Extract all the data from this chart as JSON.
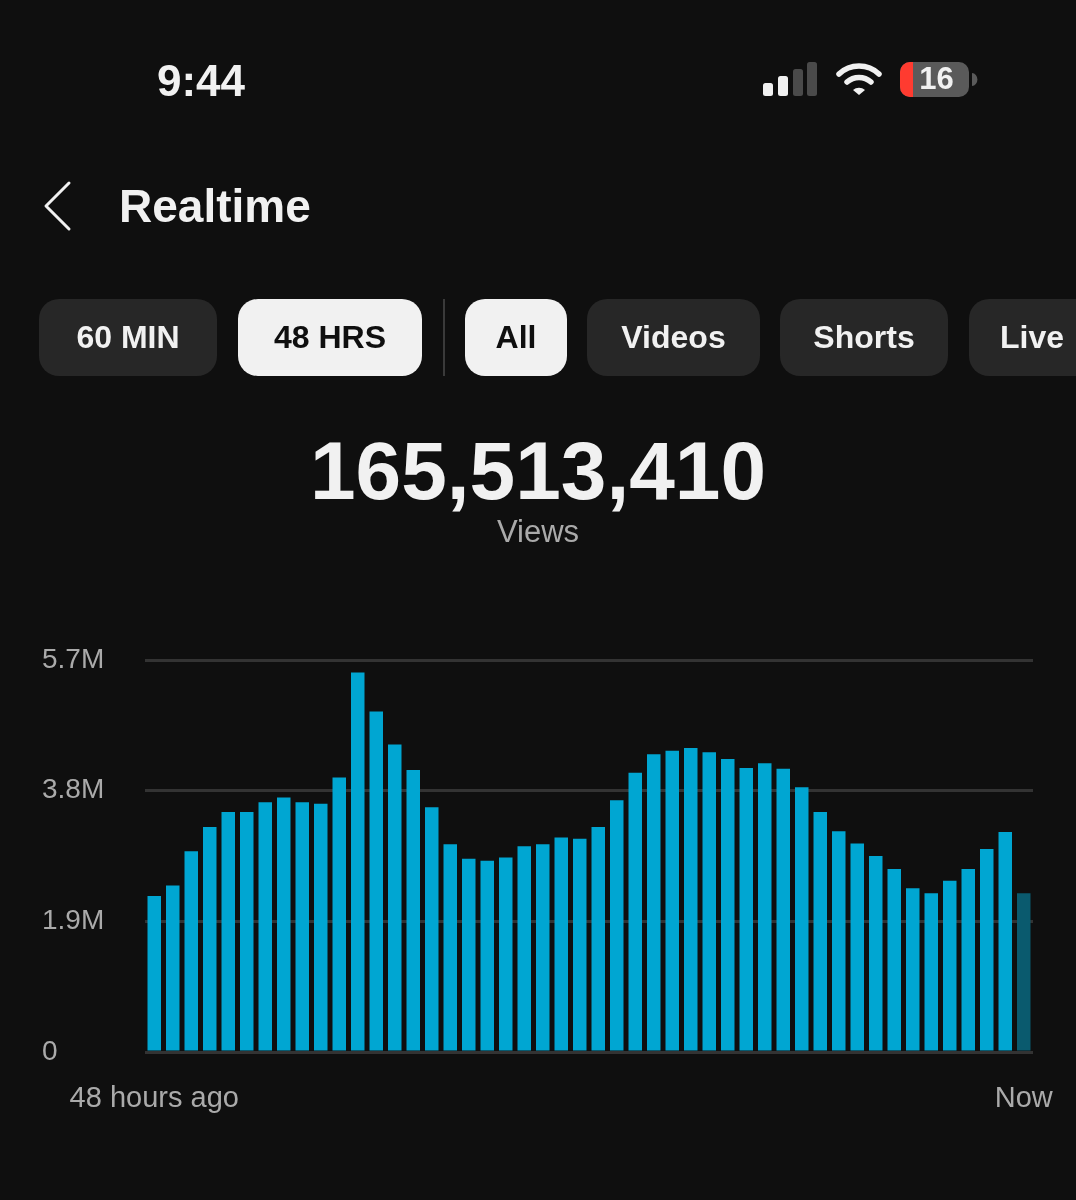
{
  "chart_data": {
    "type": "bar",
    "title": "Realtime",
    "subtitle": "165,513,410",
    "annotations": [
      "9:44",
      "16",
      "60 MIN",
      "48 HRS",
      "All",
      "Videos",
      "Shorts",
      "Live",
      "Views"
    ],
    "categories": [
      "48 hours ago",
      null,
      null,
      null,
      null,
      null,
      null,
      null,
      null,
      null,
      null,
      null,
      null,
      null,
      null,
      null,
      null,
      null,
      null,
      null,
      null,
      null,
      null,
      null,
      null,
      null,
      null,
      null,
      null,
      null,
      null,
      null,
      null,
      null,
      null,
      null,
      null,
      null,
      null,
      null,
      null,
      null,
      null,
      null,
      null,
      null,
      null,
      "Now"
    ],
    "values": [
      2270000,
      2420000,
      2920000,
      3270000,
      3490000,
      3490000,
      3630000,
      3700000,
      3630000,
      3610000,
      3990000,
      5520000,
      4950000,
      4470000,
      4100000,
      3560000,
      3020000,
      2810000,
      2780000,
      2830000,
      2990000,
      3020000,
      3120000,
      3100000,
      3270000,
      3660000,
      4060000,
      4330000,
      4380000,
      4420000,
      4360000,
      4260000,
      4130000,
      4200000,
      4120000,
      3850000,
      3490000,
      3210000,
      3030000,
      2850000,
      2660000,
      2380000,
      2310000,
      2490000,
      2660000,
      2950000,
      3200000,
      2310000
    ],
    "colors": [
      "#00a6d2",
      "#00a6d2",
      "#00a6d2",
      "#00a6d2",
      "#00a6d2",
      "#00a6d2",
      "#00a6d2",
      "#00a6d2",
      "#00a6d2",
      "#00a6d2",
      "#00a6d2",
      "#00a6d2",
      "#00a6d2",
      "#00a6d2",
      "#00a6d2",
      "#00a6d2",
      "#00a6d2",
      "#00a6d2",
      "#00a6d2",
      "#00a6d2",
      "#00a6d2",
      "#00a6d2",
      "#00a6d2",
      "#00a6d2",
      "#00a6d2",
      "#00a6d2",
      "#00a6d2",
      "#00a6d2",
      "#00a6d2",
      "#00a6d2",
      "#00a6d2",
      "#00a6d2",
      "#00a6d2",
      "#00a6d2",
      "#00a6d2",
      "#00a6d2",
      "#00a6d2",
      "#00a6d2",
      "#00a6d2",
      "#00a6d2",
      "#00a6d2",
      "#00a6d2",
      "#00a6d2",
      "#00a6d2",
      "#00a6d2",
      "#00a6d2",
      "#00a6d2",
      "#0a5a6e"
    ],
    "ylim": [
      0,
      5700000
    ],
    "yticks": [
      0,
      {
        "value": 1900000,
        "label": "1.9M"
      },
      {
        "value": 3800000,
        "label": "3.8M"
      },
      {
        "value": 5700000,
        "label": "5.7M"
      }
    ],
    "grid": "y"
  }
}
